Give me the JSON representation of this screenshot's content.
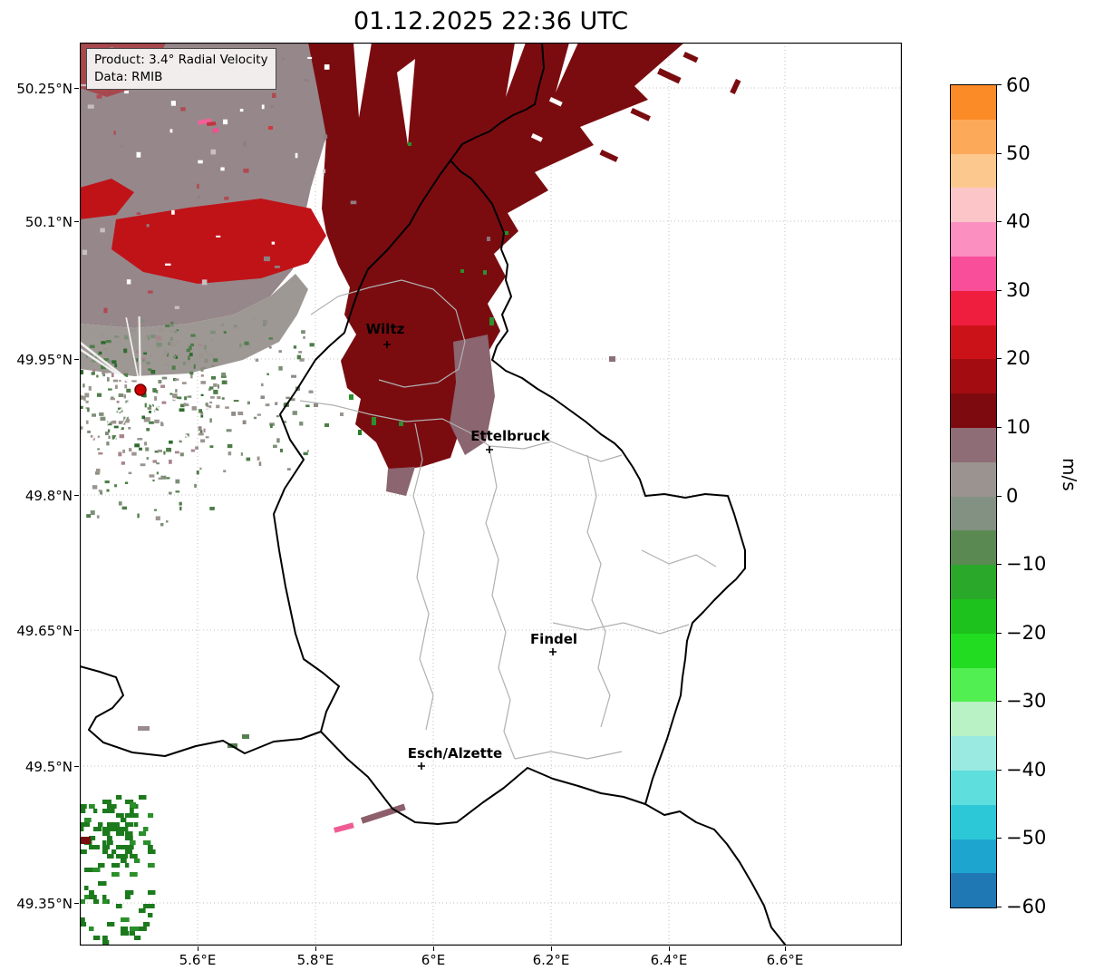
{
  "figure": {
    "title": "01.12.2025 22:36 UTC"
  },
  "info_box": {
    "product_line": "Product: 3.4° Radial Velocity",
    "data_line": "Data: RMIB"
  },
  "axes": {
    "lat_ticks": [
      "50.25°N",
      "50.1°N",
      "49.95°N",
      "49.8°N",
      "49.65°N",
      "49.5°N",
      "49.35°N"
    ],
    "lon_ticks": [
      "5.6°E",
      "5.8°E",
      "6°E",
      "6.2°E",
      "6.4°E",
      "6.6°E"
    ]
  },
  "cities": [
    {
      "name": "Wiltz"
    },
    {
      "name": "Ettelbruck"
    },
    {
      "name": "Findel"
    },
    {
      "name": "Esch/Alzette"
    }
  ],
  "colorbar": {
    "unit": "m/s",
    "ticks": [
      "60",
      "50",
      "40",
      "30",
      "20",
      "10",
      "0",
      "−10",
      "−20",
      "−30",
      "−40",
      "−50",
      "−60"
    ],
    "value_range": [
      -60,
      60
    ],
    "stops": [
      "#fb8b26",
      "#fcaa5a",
      "#fdc88e",
      "#fcc6c9",
      "#fb8fbf",
      "#f94f9a",
      "#ef1d3e",
      "#cc1219",
      "#a30d12",
      "#7c0a0f",
      "#8f6d77",
      "#9b938f",
      "#839183",
      "#5a8a52",
      "#2aa82a",
      "#1dc21d",
      "#21dc21",
      "#52ef52",
      "#b9f2c4",
      "#9aeae2",
      "#5fdede",
      "#2cc8d8",
      "#1ea5cf",
      "#1f78b4"
    ]
  },
  "map_colors": {
    "echo_dark_red": "#7a0c10",
    "echo_bright_red": "#c01318",
    "echo_mauve": "#96878a",
    "echo_green": "#1c7a1c",
    "radar_site_dot": "#cc0000"
  }
}
